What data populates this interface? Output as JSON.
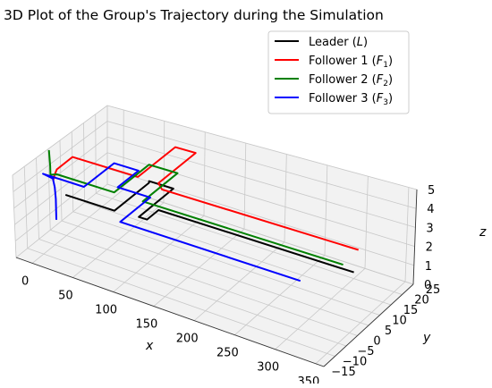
{
  "chart_data": {
    "type": "line",
    "projection": "3d",
    "title": "3D Plot of the Group's Trajectory during the Simulation",
    "xlabel": "x",
    "ylabel": "y",
    "zlabel": "z",
    "xlim": [
      -20,
      360
    ],
    "ylim": [
      -15,
      25
    ],
    "zlim": [
      0,
      5
    ],
    "xticks": [
      0,
      50,
      100,
      150,
      200,
      250,
      300,
      350
    ],
    "yticks": [
      -15,
      -10,
      -5,
      0,
      5,
      10,
      15,
      20,
      25
    ],
    "zticks": [
      0,
      1,
      2,
      3,
      4,
      5
    ],
    "grid": true,
    "legend_position": "top-right",
    "legend": [
      {
        "label": "Leader (",
        "sym": "L",
        "sub": "",
        "tail": ")",
        "color": "#000000"
      },
      {
        "label": "Follower 1 (",
        "sym": "F",
        "sub": "1",
        "tail": ")",
        "color": "#ff0000"
      },
      {
        "label": "Follower 2 (",
        "sym": "F",
        "sub": "2",
        "tail": ")",
        "color": "#008000"
      },
      {
        "label": "Follower 3 (",
        "sym": "F",
        "sub": "3",
        "tail": ")",
        "color": "#0000ff"
      }
    ],
    "series": [
      {
        "name": "Leader (L)",
        "color": "#000000",
        "points": [
          [
            0,
            0,
            2.5
          ],
          [
            60,
            0,
            2.5
          ],
          [
            60,
            15,
            2.5
          ],
          [
            60,
            15,
            2.6
          ],
          [
            90,
            15,
            2.6
          ],
          [
            90,
            0,
            2.6
          ],
          [
            100,
            0,
            2.6
          ],
          [
            100,
            5,
            2.6
          ],
          [
            340,
            5,
            2.6
          ]
        ]
      },
      {
        "name": "Follower 1 (F1)",
        "color": "#ff0000",
        "points": [
          [
            -15,
            0,
            3.1
          ],
          [
            -13,
            0,
            3.5
          ],
          [
            -10,
            0,
            3.9
          ],
          [
            -5,
            5,
            4.2
          ],
          [
            20,
            5,
            4.2
          ],
          [
            75,
            5,
            4.2
          ],
          [
            75,
            21,
            4.2
          ],
          [
            100,
            21,
            4.2
          ],
          [
            100,
            5,
            4.2
          ],
          [
            110,
            3,
            4.2
          ],
          [
            350,
            3,
            4.2
          ]
        ]
      },
      {
        "name": "Follower 2 (F2)",
        "color": "#008000",
        "points": [
          [
            -22,
            1,
            4.8
          ],
          [
            -18,
            0,
            4.0
          ],
          [
            -15,
            -1,
            3.6
          ],
          [
            -10,
            0,
            3.6
          ],
          [
            60,
            0,
            3.6
          ],
          [
            60,
            15,
            3.6
          ],
          [
            95,
            15,
            3.6
          ],
          [
            95,
            0,
            3.6
          ],
          [
            340,
            0,
            3.6
          ]
        ]
      },
      {
        "name": "Follower 3 (F3)",
        "color": "#0000ff",
        "points": [
          [
            -15,
            1,
            0.6
          ],
          [
            -15,
            1,
            1.9
          ],
          [
            -16,
            1,
            2.6
          ],
          [
            -18,
            1,
            3.1
          ],
          [
            -30,
            1,
            3.2
          ],
          [
            -15,
            1,
            3.2
          ],
          [
            -10,
            1,
            3.2
          ],
          [
            20,
            1,
            3.2
          ],
          [
            20,
            14,
            3.2
          ],
          [
            50,
            14,
            3.2
          ],
          [
            50,
            5,
            3.2
          ],
          [
            90,
            5,
            3.2
          ],
          [
            90,
            -8,
            3.2
          ],
          [
            310,
            -8,
            3.2
          ]
        ]
      }
    ]
  }
}
